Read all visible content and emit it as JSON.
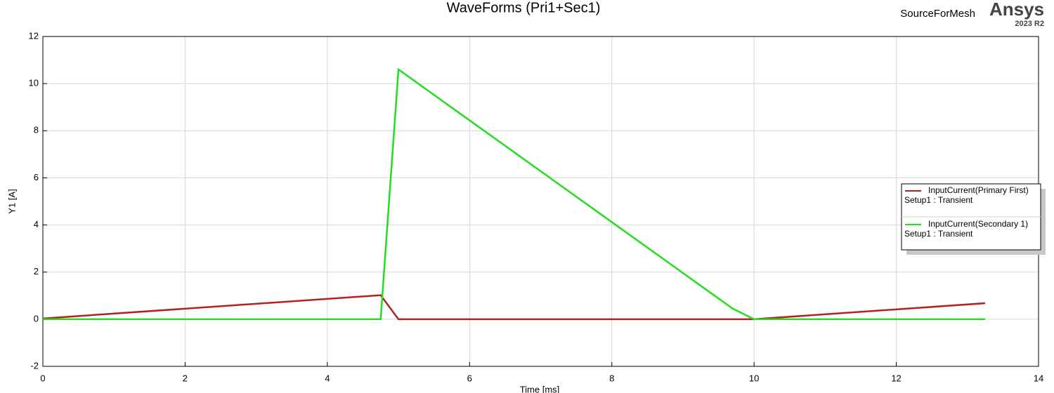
{
  "chart_data": {
    "type": "line",
    "title": "WaveForms (Pri1+Sec1)",
    "project": "SourceForMesh",
    "brand": "Ansys",
    "version": "2023 R2",
    "x_label": "Time [ms]",
    "y_label": "Y1 [A]",
    "xlim": [
      0,
      14
    ],
    "xticks": [
      0,
      2,
      4,
      6,
      8,
      10,
      12,
      14
    ],
    "ylim": [
      -2,
      12
    ],
    "yticks": [
      -2,
      0,
      2,
      4,
      6,
      8,
      10,
      12
    ],
    "grid": true,
    "legend_position": "right",
    "series": [
      {
        "name": "InputCurrent(Primary  First)",
        "setup": "Setup1 : Transient",
        "color": "#b22222",
        "x": [
          0,
          4.75,
          5,
          10,
          13.25
        ],
        "values": [
          0.03,
          1.02,
          0,
          0,
          0.68
        ]
      },
      {
        "name": "InputCurrent(Secondary  1)",
        "setup": "Setup1 : Transient",
        "color": "#22dd22",
        "x": [
          0,
          4.75,
          5,
          9.7,
          10,
          13.25
        ],
        "values": [
          0,
          0,
          10.6,
          0.45,
          0,
          0
        ]
      }
    ]
  }
}
